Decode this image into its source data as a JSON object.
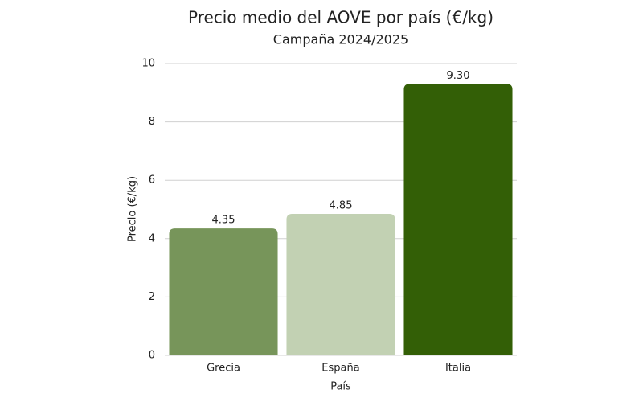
{
  "chart_data": {
    "type": "bar",
    "title": "Precio medio del AOVE por país (€/kg)",
    "subtitle": "Campaña 2024/2025",
    "x_label": "País",
    "y_label": "Precio (€/kg)",
    "categories": [
      "Grecia",
      "España",
      "Italia"
    ],
    "values": [
      4.35,
      4.85,
      9.3
    ],
    "value_labels": [
      "4.35",
      "4.85",
      "9.30"
    ],
    "colors": [
      "#77955a",
      "#c2d1b3",
      "#335f06"
    ],
    "ylim": [
      0,
      10
    ],
    "yticks": [
      0,
      2,
      4,
      6,
      8,
      10
    ],
    "grid": true
  }
}
